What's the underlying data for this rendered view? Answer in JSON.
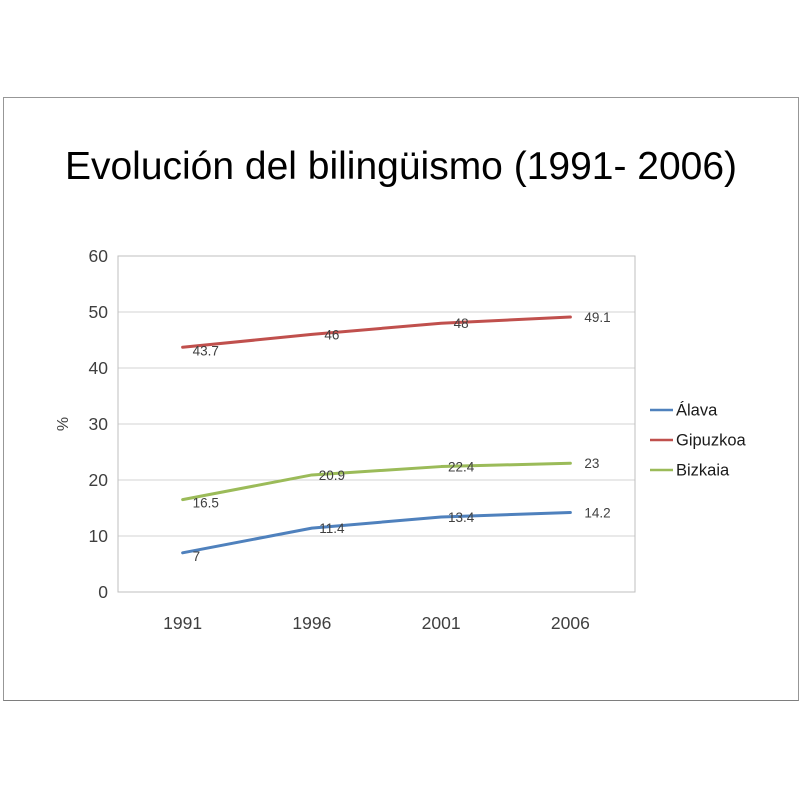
{
  "chart_data": {
    "type": "line",
    "title": "Evolución del bilingüismo (1991- 2006)",
    "categories": [
      "1991",
      "1996",
      "2001",
      "2006"
    ],
    "series": [
      {
        "name": "Álava",
        "color": "#4F81BD",
        "values": [
          7,
          11.4,
          13.4,
          14.2
        ],
        "labels": [
          "7",
          "11.4",
          "13.4",
          "14.2"
        ]
      },
      {
        "name": "Gipuzkoa",
        "color": "#C0504D",
        "values": [
          43.7,
          46,
          48,
          49.1
        ],
        "labels": [
          "43.7",
          "46",
          "48",
          "49.1"
        ]
      },
      {
        "name": "Bizkaia",
        "color": "#9BBB59",
        "values": [
          16.5,
          20.9,
          22.4,
          23
        ],
        "labels": [
          "16.5",
          "20.9",
          "22.4",
          "23"
        ]
      }
    ],
    "legend_order": [
      "Álava",
      "Gipuzkoa",
      "Bizkaia"
    ],
    "xlabel": "",
    "ylabel": "%",
    "ylim": [
      0,
      60
    ],
    "yticks": [
      0,
      10,
      20,
      30,
      40,
      50,
      60
    ],
    "grid": true,
    "legend_position": "right",
    "marker": "none",
    "colors": {
      "gridline": "#D3D3D3",
      "plot_border": "#BFBFBF",
      "tick_label": "#3F3F3F",
      "data_label": "#404040",
      "title": "#000000",
      "slide_border": "#979797",
      "background": "#FFFFFF"
    }
  }
}
